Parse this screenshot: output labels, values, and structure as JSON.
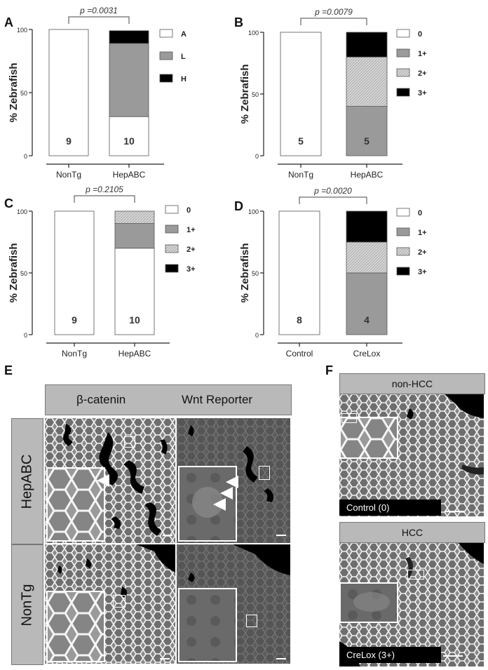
{
  "colors": {
    "A": "#ffffff",
    "L": "#9a9a9a",
    "H": "#000000",
    "grade0": "#ffffff",
    "grade1": "#9a9a9a",
    "grade2": "#d6d6d6",
    "grade3": "#000000",
    "header_bg": "#b9b9b9"
  },
  "panels": {
    "A": {
      "letter": "A"
    },
    "B": {
      "letter": "B"
    },
    "C": {
      "letter": "C"
    },
    "D": {
      "letter": "D"
    },
    "E": {
      "letter": "E"
    },
    "F": {
      "letter": "F"
    }
  },
  "chart_data": [
    {
      "id": "A",
      "type": "bar",
      "stacked": true,
      "ylabel": "% Zebrafish",
      "ylim": [
        0,
        100
      ],
      "yticks": [
        "0",
        "50",
        "100"
      ],
      "categories": [
        "NonTg",
        "HepABC"
      ],
      "n_labels": [
        "9",
        "10"
      ],
      "pvalue": "p =0.0031",
      "legend": [
        "A",
        "L",
        "H"
      ],
      "series": [
        {
          "name": "A",
          "values": [
            100,
            31
          ]
        },
        {
          "name": "L",
          "values": [
            0,
            58
          ]
        },
        {
          "name": "H",
          "values": [
            0,
            10
          ]
        }
      ]
    },
    {
      "id": "B",
      "type": "bar",
      "stacked": true,
      "ylabel": "% Zebrafish",
      "ylim": [
        0,
        100
      ],
      "yticks": [
        "0",
        "50",
        "100"
      ],
      "categories": [
        "NonTg",
        "HepABC"
      ],
      "n_labels": [
        "5",
        "5"
      ],
      "pvalue": "p =0.0079",
      "legend": [
        "0",
        "1+",
        "2+",
        "3+"
      ],
      "series": [
        {
          "name": "0",
          "values": [
            100,
            0
          ]
        },
        {
          "name": "1+",
          "values": [
            0,
            40
          ]
        },
        {
          "name": "2+",
          "values": [
            0,
            40
          ]
        },
        {
          "name": "3+",
          "values": [
            0,
            20
          ]
        }
      ]
    },
    {
      "id": "C",
      "type": "bar",
      "stacked": true,
      "ylabel": "% Zebrafish",
      "ylim": [
        0,
        100
      ],
      "yticks": [
        "0",
        "50",
        "100"
      ],
      "categories": [
        "NonTg",
        "HepABC"
      ],
      "n_labels": [
        "9",
        "10"
      ],
      "pvalue": "p =0.2105",
      "legend": [
        "0",
        "1+",
        "2+",
        "3+"
      ],
      "series": [
        {
          "name": "0",
          "values": [
            100,
            70
          ]
        },
        {
          "name": "1+",
          "values": [
            0,
            20
          ]
        },
        {
          "name": "2+",
          "values": [
            0,
            10
          ]
        },
        {
          "name": "3+",
          "values": [
            0,
            0
          ]
        }
      ]
    },
    {
      "id": "D",
      "type": "bar",
      "stacked": true,
      "ylabel": "% Zebrafish",
      "ylim": [
        0,
        100
      ],
      "yticks": [
        "0",
        "50",
        "100"
      ],
      "categories": [
        "Control",
        "CreLox"
      ],
      "n_labels": [
        "8",
        "4"
      ],
      "pvalue": "p =0.0020",
      "legend": [
        "0",
        "1+",
        "2+",
        "3+"
      ],
      "series": [
        {
          "name": "0",
          "values": [
            100,
            0
          ]
        },
        {
          "name": "1+",
          "values": [
            0,
            50
          ]
        },
        {
          "name": "2+",
          "values": [
            0,
            25
          ]
        },
        {
          "name": "3+",
          "values": [
            0,
            25
          ]
        }
      ]
    }
  ],
  "panel_e": {
    "col_headers": [
      "β-catenin",
      "Wnt Reporter"
    ],
    "row_headers": [
      "HepABC",
      "NonTg"
    ]
  },
  "panel_f": {
    "top_header": "non-HCC",
    "top_caption": "Control (0)",
    "bottom_header": "HCC",
    "bottom_caption": "CreLox (3+)"
  }
}
